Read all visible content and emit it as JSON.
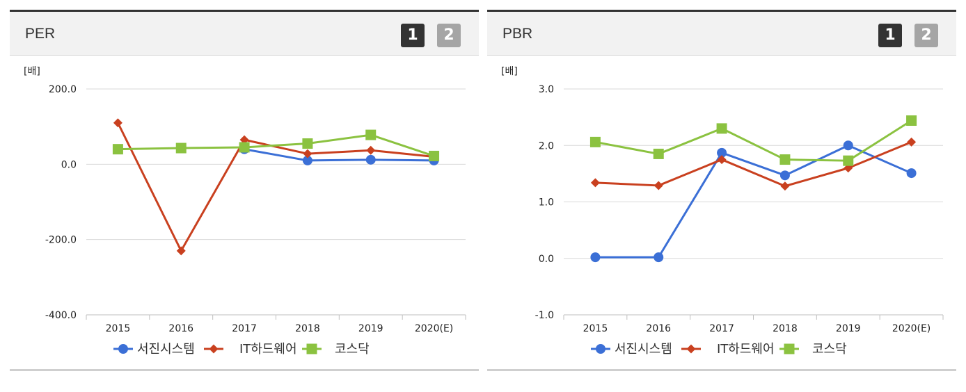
{
  "panels": [
    {
      "title": "PER",
      "tabs": [
        "1",
        "2"
      ],
      "active_tab": 0
    },
    {
      "title": "PBR",
      "tabs": [
        "1",
        "2"
      ],
      "active_tab": 0
    }
  ],
  "colors": {
    "series_blue": "#3b6fd6",
    "series_red": "#c9401f",
    "series_green": "#8bc240",
    "grid": "#d9d9d9"
  },
  "chart_data": [
    {
      "type": "line",
      "title": "PER",
      "unit_label": "[배]",
      "categories": [
        "2015",
        "2016",
        "2017",
        "2018",
        "2019",
        "2020(E)"
      ],
      "y_ticks": [
        "200.0",
        "0.0",
        "-200.0",
        "-400.0"
      ],
      "y_tick_values": [
        200,
        0,
        -200,
        -400
      ],
      "ylim": [
        -400,
        200
      ],
      "legend_position": "bottom",
      "series": [
        {
          "name": "서진시스템",
          "marker": "circle",
          "color": "#3b6fd6",
          "values": [
            null,
            null,
            40,
            10,
            12,
            10
          ]
        },
        {
          "name": "IT하드웨어",
          "marker": "diamond",
          "color": "#c9401f",
          "values": [
            110,
            -230,
            65,
            28,
            37,
            20
          ]
        },
        {
          "name": "코스닥",
          "marker": "square",
          "color": "#8bc240",
          "values": [
            40,
            43,
            45,
            55,
            78,
            22
          ]
        }
      ]
    },
    {
      "type": "line",
      "title": "PBR",
      "unit_label": "[배]",
      "categories": [
        "2015",
        "2016",
        "2017",
        "2018",
        "2019",
        "2020(E)"
      ],
      "y_ticks": [
        "3.0",
        "2.0",
        "1.0",
        "0.0",
        "-1.0"
      ],
      "y_tick_values": [
        3,
        2,
        1,
        0,
        -1
      ],
      "ylim": [
        -1,
        3
      ],
      "legend_position": "bottom",
      "series": [
        {
          "name": "서진시스템",
          "marker": "circle",
          "color": "#3b6fd6",
          "values": [
            0.02,
            0.02,
            1.87,
            1.47,
            2.0,
            1.51
          ]
        },
        {
          "name": "IT하드웨어",
          "marker": "diamond",
          "color": "#c9401f",
          "values": [
            1.34,
            1.29,
            1.75,
            1.28,
            1.6,
            2.06
          ]
        },
        {
          "name": "코스닥",
          "marker": "square",
          "color": "#8bc240",
          "values": [
            2.06,
            1.85,
            2.3,
            1.75,
            1.73,
            2.44
          ]
        }
      ]
    }
  ]
}
